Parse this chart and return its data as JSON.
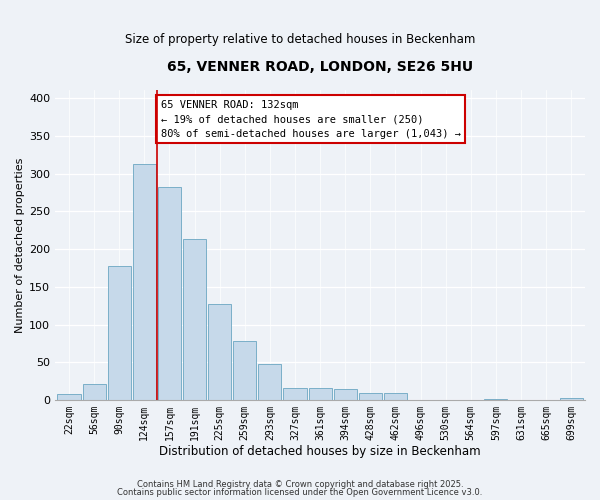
{
  "title": "65, VENNER ROAD, LONDON, SE26 5HU",
  "subtitle": "Size of property relative to detached houses in Beckenham",
  "xlabel": "Distribution of detached houses by size in Beckenham",
  "ylabel": "Number of detached properties",
  "footer_line1": "Contains HM Land Registry data © Crown copyright and database right 2025.",
  "footer_line2": "Contains public sector information licensed under the Open Government Licence v3.0.",
  "bar_labels": [
    "22sqm",
    "56sqm",
    "90sqm",
    "124sqm",
    "157sqm",
    "191sqm",
    "225sqm",
    "259sqm",
    "293sqm",
    "327sqm",
    "361sqm",
    "394sqm",
    "428sqm",
    "462sqm",
    "496sqm",
    "530sqm",
    "564sqm",
    "597sqm",
    "631sqm",
    "665sqm",
    "699sqm"
  ],
  "bar_values": [
    8,
    22,
    177,
    312,
    282,
    213,
    127,
    79,
    48,
    16,
    16,
    15,
    9,
    9,
    0,
    0,
    0,
    2,
    0,
    0,
    3
  ],
  "bar_color": "#c6d9ea",
  "bar_edge_color": "#7aafc8",
  "ylim": [
    0,
    410
  ],
  "yticks": [
    0,
    50,
    100,
    150,
    200,
    250,
    300,
    350,
    400
  ],
  "vline_x": 3.5,
  "vline_color": "#cc0000",
  "annotation_title": "65 VENNER ROAD: 132sqm",
  "annotation_line1": "← 19% of detached houses are smaller (250)",
  "annotation_line2": "80% of semi-detached houses are larger (1,043) →",
  "annotation_box_color": "#ffffff",
  "annotation_box_edge": "#cc0000",
  "background_color": "#eef2f7"
}
